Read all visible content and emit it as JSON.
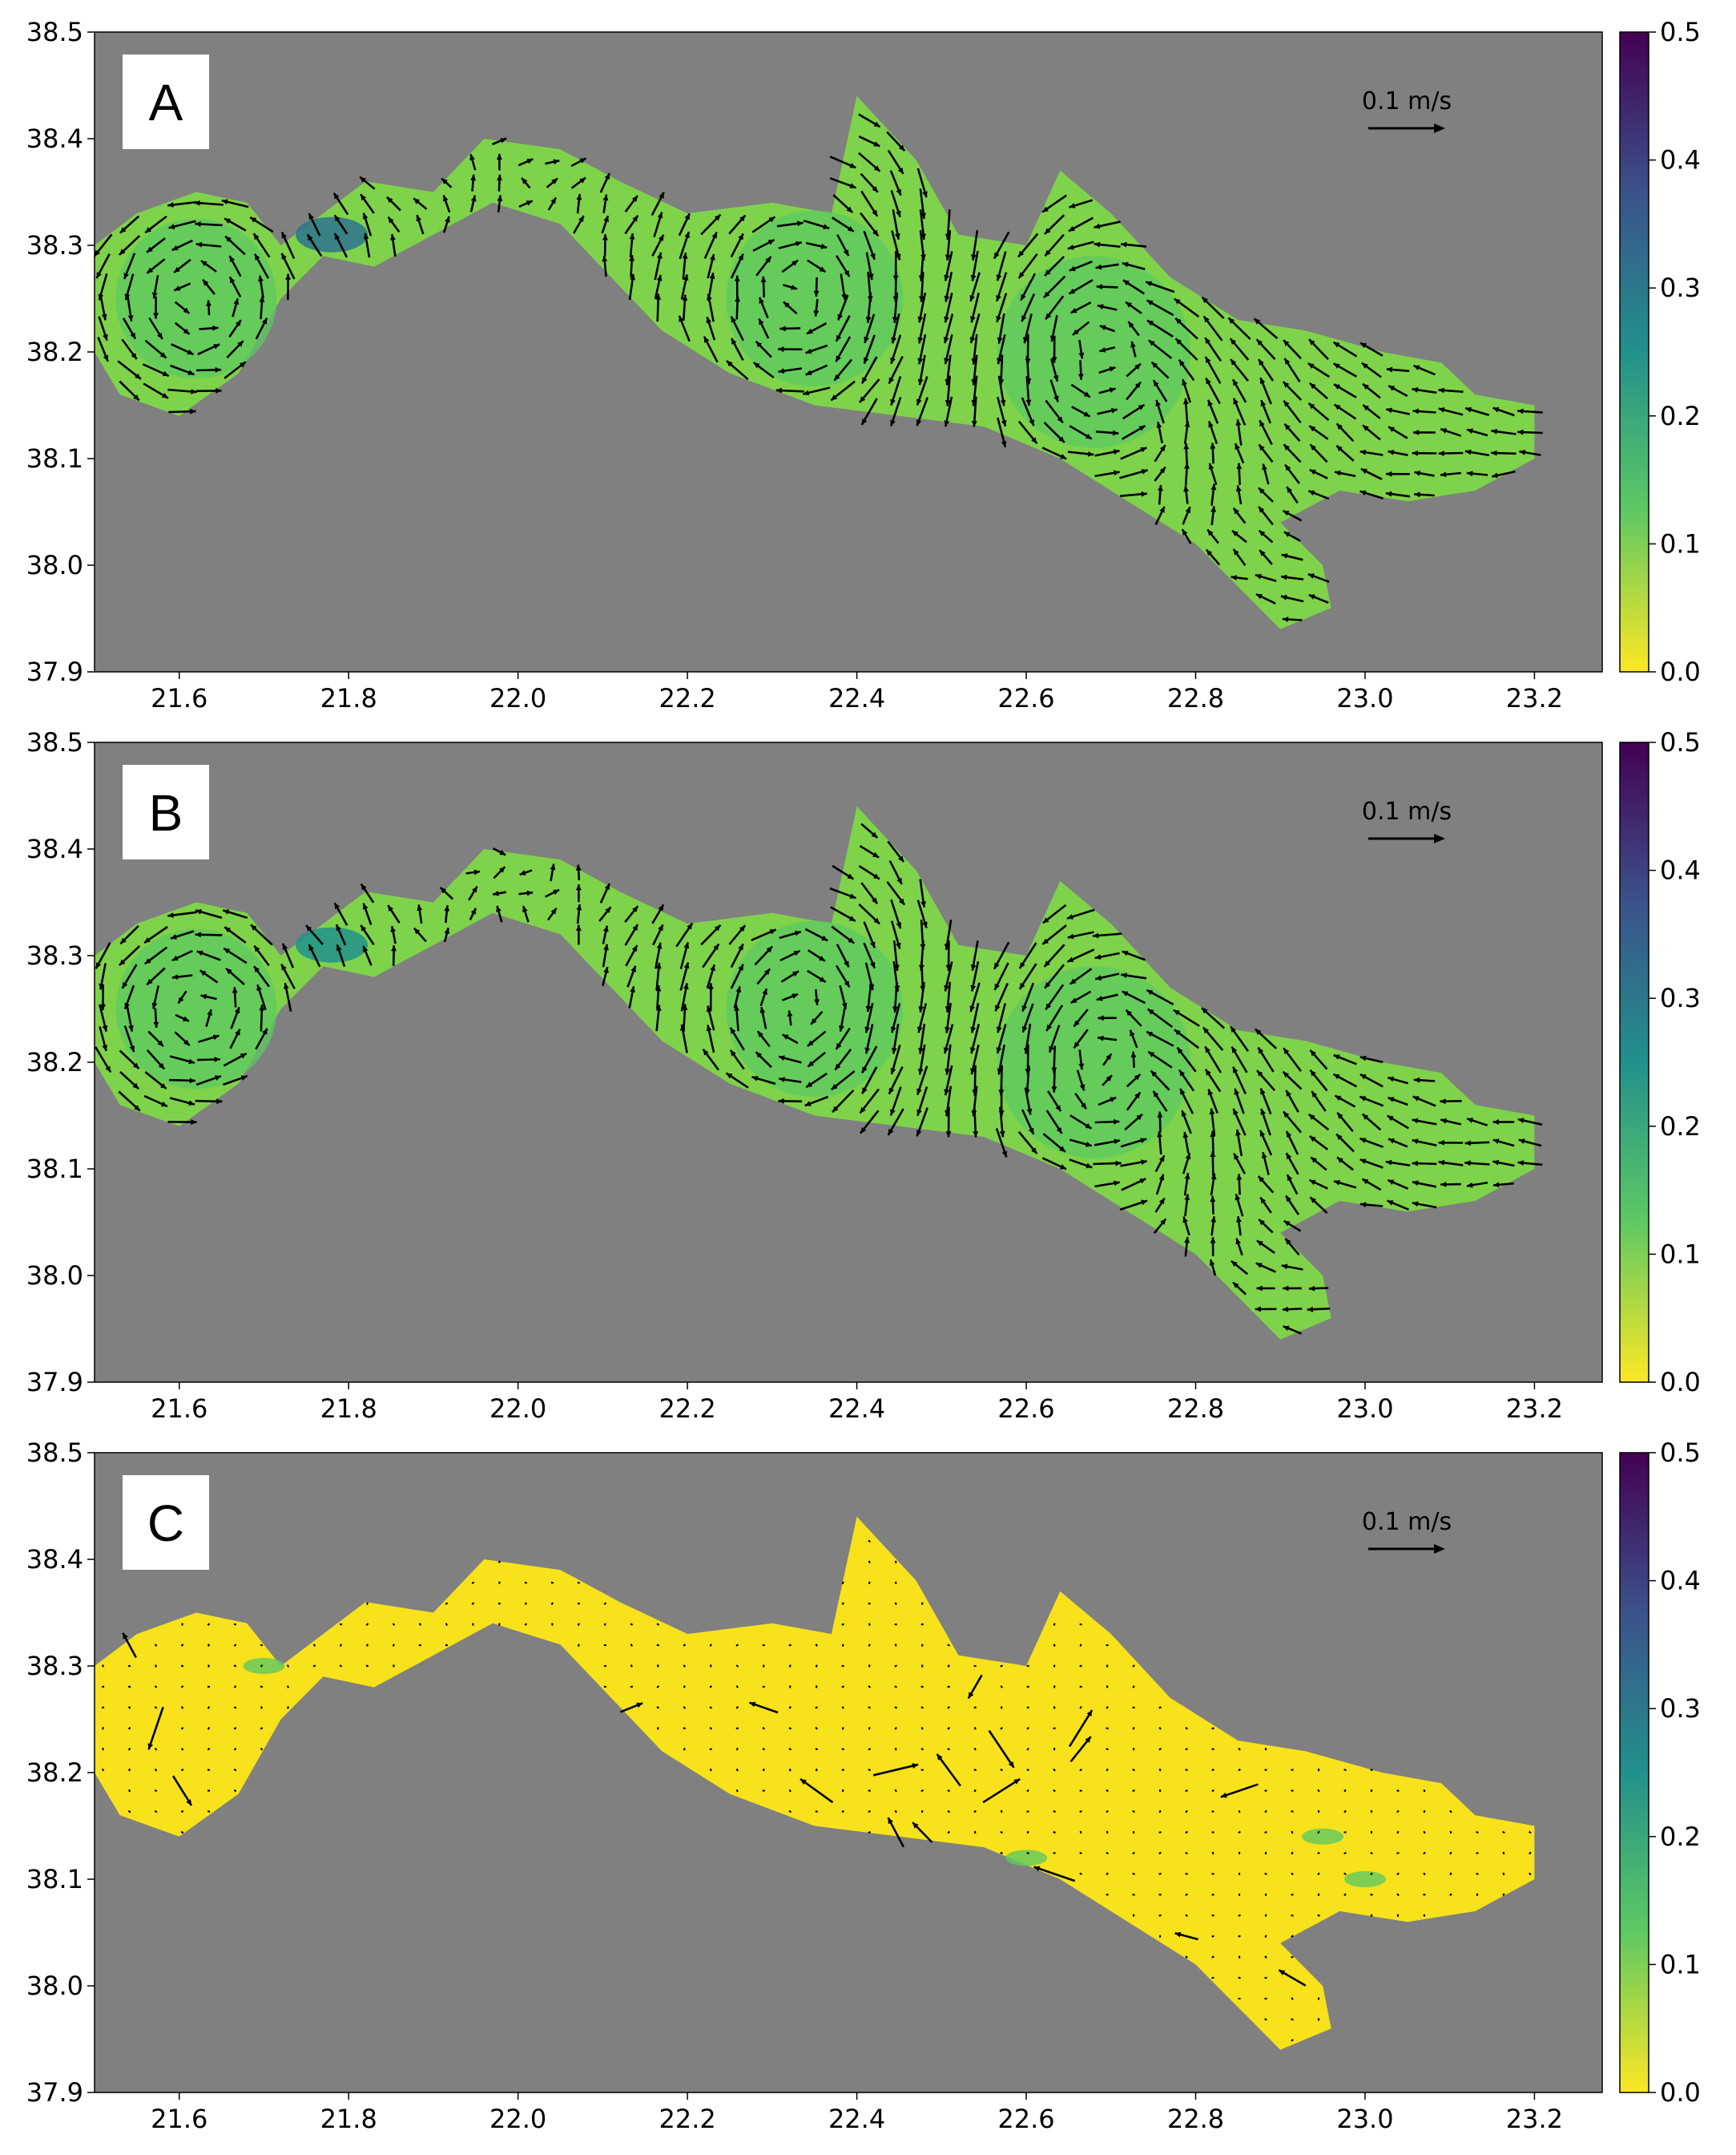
{
  "colors": {
    "land": "#808080",
    "water_low": "#f7e21c",
    "water_mid": "#5ec962",
    "water_high": "#21918c",
    "arrow": "#000000",
    "colorbar_stops": [
      "#fde725",
      "#5ec962",
      "#21918c",
      "#3b528b",
      "#440154"
    ]
  },
  "chart_data": [
    {
      "type": "quiver",
      "panel_label": "A",
      "x_ticks": [
        "21.6",
        "21.8",
        "22.0",
        "22.2",
        "22.4",
        "22.6",
        "22.8",
        "23.0",
        "23.2"
      ],
      "y_ticks": [
        "38.5",
        "38.4",
        "38.3",
        "38.2",
        "38.1",
        "38.0",
        "37.9"
      ],
      "xlim": [
        21.5,
        23.28
      ],
      "ylim": [
        37.9,
        38.5
      ],
      "colorbar": {
        "ticks": [
          "0.5",
          "0.4",
          "0.3",
          "0.2",
          "0.1",
          "0.0"
        ],
        "range": [
          0.0,
          0.5
        ]
      },
      "scale_arrow_label": "0.1 m/s",
      "eddies": [
        {
          "lon": 21.62,
          "lat": 38.25,
          "radius": 0.1,
          "rotation": "cyclonic"
        },
        {
          "lon": 22.35,
          "lat": 38.25,
          "radius": 0.11,
          "rotation": "anticyclonic"
        },
        {
          "lon": 22.68,
          "lat": 38.2,
          "radius": 0.12,
          "rotation": "cyclonic"
        }
      ],
      "mean_speed": 0.13
    },
    {
      "type": "quiver",
      "panel_label": "B",
      "x_ticks": [
        "21.6",
        "21.8",
        "22.0",
        "22.2",
        "22.4",
        "22.6",
        "22.8",
        "23.0",
        "23.2"
      ],
      "y_ticks": [
        "38.5",
        "38.4",
        "38.3",
        "38.2",
        "38.1",
        "38.0",
        "37.9"
      ],
      "xlim": [
        21.5,
        23.28
      ],
      "ylim": [
        37.9,
        38.5
      ],
      "colorbar": {
        "ticks": [
          "0.5",
          "0.4",
          "0.3",
          "0.2",
          "0.1",
          "0.0"
        ],
        "range": [
          0.0,
          0.5
        ]
      },
      "scale_arrow_label": "0.1 m/s",
      "eddies": [
        {
          "lon": 21.62,
          "lat": 38.25,
          "radius": 0.1,
          "rotation": "cyclonic"
        },
        {
          "lon": 22.35,
          "lat": 38.25,
          "radius": 0.11,
          "rotation": "anticyclonic"
        },
        {
          "lon": 22.68,
          "lat": 38.2,
          "radius": 0.12,
          "rotation": "cyclonic"
        }
      ],
      "mean_speed": 0.12
    },
    {
      "type": "quiver",
      "panel_label": "C",
      "x_ticks": [
        "21.6",
        "21.8",
        "22.0",
        "22.2",
        "22.4",
        "22.6",
        "22.8",
        "23.0",
        "23.2"
      ],
      "y_ticks": [
        "38.5",
        "38.4",
        "38.3",
        "38.2",
        "38.1",
        "38.0",
        "37.9"
      ],
      "xlim": [
        21.5,
        23.28
      ],
      "ylim": [
        37.9,
        38.5
      ],
      "colorbar": {
        "ticks": [
          "0.5",
          "0.4",
          "0.3",
          "0.2",
          "0.1",
          "0.0"
        ],
        "range": [
          0.0,
          0.5
        ]
      },
      "scale_arrow_label": "0.1 m/s",
      "eddies": [],
      "mean_speed": 0.01
    }
  ],
  "basin_outline": [
    [
      21.5,
      38.3
    ],
    [
      21.55,
      38.33
    ],
    [
      21.62,
      38.35
    ],
    [
      21.68,
      38.34
    ],
    [
      21.72,
      38.3
    ],
    [
      21.77,
      38.33
    ],
    [
      21.82,
      38.36
    ],
    [
      21.9,
      38.35
    ],
    [
      21.96,
      38.4
    ],
    [
      22.05,
      38.39
    ],
    [
      22.12,
      38.36
    ],
    [
      22.2,
      38.33
    ],
    [
      22.3,
      38.34
    ],
    [
      22.37,
      38.33
    ],
    [
      22.4,
      38.44
    ],
    [
      22.47,
      38.38
    ],
    [
      22.52,
      38.31
    ],
    [
      22.6,
      38.3
    ],
    [
      22.64,
      38.37
    ],
    [
      22.7,
      38.33
    ],
    [
      22.77,
      38.27
    ],
    [
      22.85,
      38.23
    ],
    [
      22.93,
      38.22
    ],
    [
      23.02,
      38.2
    ],
    [
      23.09,
      38.19
    ],
    [
      23.13,
      38.16
    ],
    [
      23.2,
      38.15
    ],
    [
      23.2,
      38.1
    ],
    [
      23.13,
      38.07
    ],
    [
      23.05,
      38.06
    ],
    [
      22.97,
      38.07
    ],
    [
      22.9,
      38.04
    ],
    [
      22.95,
      38.0
    ],
    [
      22.96,
      37.96
    ],
    [
      22.9,
      37.94
    ],
    [
      22.85,
      37.98
    ],
    [
      22.8,
      38.02
    ],
    [
      22.72,
      38.06
    ],
    [
      22.64,
      38.1
    ],
    [
      22.55,
      38.13
    ],
    [
      22.45,
      38.14
    ],
    [
      22.35,
      38.15
    ],
    [
      22.25,
      38.18
    ],
    [
      22.17,
      38.22
    ],
    [
      22.11,
      38.27
    ],
    [
      22.05,
      38.32
    ],
    [
      21.97,
      38.34
    ],
    [
      21.9,
      38.31
    ],
    [
      21.83,
      38.28
    ],
    [
      21.77,
      38.29
    ],
    [
      21.72,
      38.25
    ],
    [
      21.67,
      38.18
    ],
    [
      21.6,
      38.14
    ],
    [
      21.53,
      38.16
    ],
    [
      21.5,
      38.2
    ]
  ]
}
